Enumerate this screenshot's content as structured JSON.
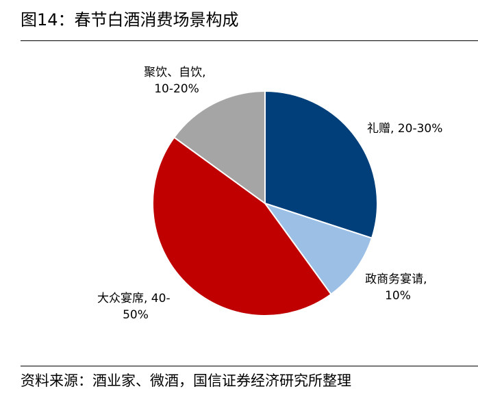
{
  "header": {
    "title": "图14：春节白酒消费场景构成"
  },
  "footer": {
    "source": "资料来源：酒业家、微酒，国信证券经济研究所整理"
  },
  "chart_data": {
    "type": "pie",
    "title": "图14：春节白酒消费场景构成",
    "start_angle": 0,
    "direction": "clockwise",
    "slices": [
      {
        "name": "礼赠",
        "range": "20-30%",
        "label_lines": [
          "礼赠, 20-30%"
        ],
        "value": 30,
        "color": "#003F7A"
      },
      {
        "name": "政商务宴请",
        "range": "10%",
        "label_lines": [
          "政商务宴请,",
          "10%"
        ],
        "value": 10,
        "color": "#9CBFE6"
      },
      {
        "name": "大众宴席",
        "range": "40-50%",
        "label_lines": [
          "大众宴席, 40-",
          "50%"
        ],
        "value": 45,
        "color": "#C00000"
      },
      {
        "name": "聚饮、自饮",
        "range": "10-20%",
        "label_lines": [
          "聚饮、自饮,",
          "10-20%"
        ],
        "value": 15,
        "color": "#A5A5A5"
      }
    ]
  }
}
